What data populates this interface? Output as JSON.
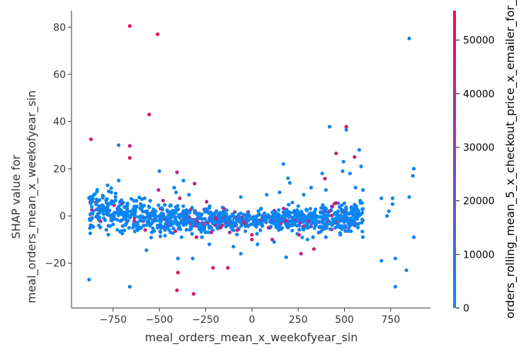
{
  "chart_data": {
    "type": "scatter",
    "title": "",
    "xlabel": "meal_orders_mean_x_weekofyear_sin",
    "ylabel_line1": "SHAP value for",
    "ylabel_line2": "meal_orders_mean_x_weekofyear_sin",
    "xlim": [
      -975,
      965
    ],
    "ylim": [
      -39,
      87
    ],
    "x_ticks": [
      -750,
      -500,
      -250,
      0,
      250,
      500,
      750
    ],
    "x_tick_labels": [
      "−750",
      "−500",
      "−250",
      "0",
      "250",
      "500",
      "750"
    ],
    "y_ticks": [
      -20,
      0,
      20,
      40,
      60,
      80
    ],
    "y_tick_labels": [
      "−20",
      "0",
      "20",
      "40",
      "60",
      "80"
    ],
    "grid": false,
    "colorbar": {
      "label": "orders_rolling_mean_5_x_checkout_price_x_emailer_for_",
      "min": 0,
      "max": 55500,
      "ticks": [
        0,
        10000,
        20000,
        30000,
        40000,
        50000
      ],
      "tick_labels": [
        "0",
        "10000",
        "20000",
        "30000",
        "40000",
        "50000"
      ],
      "color_low": "#008bfb",
      "color_high": "#ff0052"
    },
    "points": [
      [
        -660,
        80.5,
        52000
      ],
      [
        -510,
        77,
        50000
      ],
      [
        -555,
        43,
        48000
      ],
      [
        -870,
        32.5,
        47000
      ],
      [
        -660,
        29.7,
        46000
      ],
      [
        -660,
        24.6,
        50000
      ],
      [
        510,
        37.8,
        48000
      ],
      [
        455,
        26.5,
        45000
      ],
      [
        555,
        25,
        47000
      ],
      [
        395,
        15.8,
        44000
      ],
      [
        -405,
        18.5,
        43000
      ],
      [
        -310,
        13.7,
        42000
      ],
      [
        -505,
        11,
        41000
      ],
      [
        -480,
        6.5,
        40000
      ],
      [
        -390,
        7.5,
        43000
      ],
      [
        -245,
        6,
        42000
      ],
      [
        -300,
        -9,
        45000
      ],
      [
        -400,
        -24,
        48000
      ],
      [
        -405,
        -31.5,
        46000
      ],
      [
        -315,
        -33,
        47000
      ],
      [
        -210,
        -22,
        44000
      ],
      [
        -130,
        -22,
        45000
      ],
      [
        265,
        -16,
        42000
      ],
      [
        335,
        -14,
        41000
      ],
      [
        255,
        -8,
        43000
      ],
      [
        185,
        -2,
        42000
      ],
      [
        435,
        4,
        44000
      ],
      [
        455,
        5.5,
        41000
      ],
      [
        -160,
        -4,
        40000
      ],
      [
        0,
        -8,
        42000
      ],
      [
        0,
        -10,
        43000
      ],
      [
        110,
        -10,
        41000
      ],
      [
        90,
        -5,
        40000
      ],
      [
        -80,
        -6,
        42000
      ],
      [
        -40,
        -3,
        41000
      ],
      [
        -220,
        -7,
        40000
      ],
      [
        -170,
        -5,
        42000
      ],
      [
        -120,
        -7,
        35000
      ],
      [
        -150,
        3,
        30000
      ],
      [
        420,
        2,
        28000
      ],
      [
        850,
        75.2,
        5000
      ],
      [
        420,
        37.8,
        4000
      ],
      [
        510,
        36.5,
        6000
      ],
      [
        -720,
        30,
        5000
      ],
      [
        -500,
        19,
        4000
      ],
      [
        170,
        22,
        3000
      ],
      [
        580,
        28,
        2000
      ],
      [
        -880,
        -27,
        4000
      ],
      [
        -570,
        -14.5,
        3000
      ],
      [
        -660,
        -30,
        5000
      ],
      [
        -400,
        -18,
        3000
      ],
      [
        -320,
        -18,
        4000
      ],
      [
        -60,
        -16,
        2000
      ],
      [
        185,
        -17.5,
        3000
      ],
      [
        330,
        -9,
        2000
      ],
      [
        700,
        -19,
        3000
      ],
      [
        775,
        -18,
        2000
      ],
      [
        775,
        -30,
        4000
      ],
      [
        835,
        -23,
        3000
      ],
      [
        875,
        -9,
        2000
      ],
      [
        875,
        20,
        3000
      ],
      [
        870,
        17,
        4000
      ],
      [
        590,
        21,
        3000
      ],
      [
        495,
        23,
        2000
      ],
      [
        490,
        19,
        3000
      ],
      [
        530,
        18,
        2000
      ],
      [
        195,
        16,
        3000
      ],
      [
        205,
        14,
        2000
      ],
      [
        380,
        18,
        3000
      ],
      [
        -720,
        15,
        2000
      ],
      [
        -370,
        15,
        3000
      ],
      [
        -420,
        12,
        2000
      ],
      [
        -780,
        13,
        3000
      ],
      [
        -880,
        7.5,
        2000
      ],
      [
        -580,
        7.5,
        3000
      ],
      [
        850,
        8,
        2000
      ],
      [
        700,
        7.5,
        3000
      ],
      [
        760,
        7.5,
        2000
      ],
      [
        760,
        5,
        3000
      ],
      [
        740,
        2,
        2000
      ],
      [
        730,
        0,
        3000
      ],
      [
        560,
        12,
        2000
      ],
      [
        600,
        11,
        3000
      ],
      [
        320,
        12,
        2000
      ],
      [
        400,
        11,
        3000
      ],
      [
        -760,
        10,
        2000
      ],
      [
        -410,
        10,
        3000
      ],
      [
        -340,
        9,
        2000
      ],
      [
        -60,
        8,
        3000
      ],
      [
        80,
        9,
        2000
      ],
      [
        150,
        10,
        3000
      ],
      [
        280,
        9,
        2000
      ],
      [
        -630,
        2,
        3000
      ],
      [
        -600,
        0,
        2000
      ],
      [
        -550,
        -1,
        3000
      ],
      [
        -520,
        -2,
        3000
      ],
      [
        -470,
        -5,
        2000
      ],
      [
        -440,
        -7,
        3000
      ],
      [
        -380,
        -9,
        2000
      ],
      [
        -270,
        -9,
        3000
      ],
      [
        -230,
        -12,
        2000
      ],
      [
        -100,
        -13,
        3000
      ],
      [
        30,
        -12,
        2000
      ],
      [
        120,
        -11,
        3000
      ],
      [
        300,
        -10,
        2000
      ],
      [
        400,
        -9,
        3000
      ],
      [
        450,
        -5,
        2000
      ],
      [
        520,
        -2,
        3000
      ],
      [
        560,
        0,
        2000
      ],
      [
        600,
        3,
        3000
      ],
      [
        -680,
        4,
        2000
      ],
      [
        -820,
        3,
        3000
      ]
    ]
  }
}
